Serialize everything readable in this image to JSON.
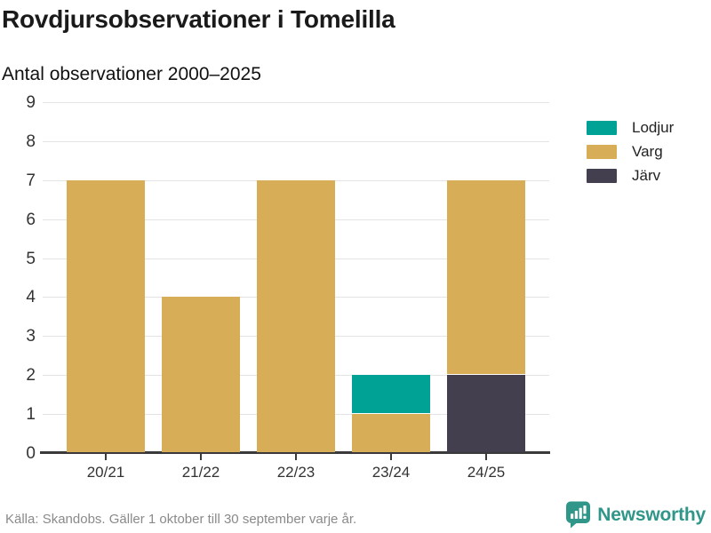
{
  "header": {
    "title": "Rovdjursobservationer i Tomelilla",
    "subtitle": "Antal observationer 2000–2025"
  },
  "chart_data": {
    "type": "bar",
    "stacked": true,
    "title": "Rovdjursobservationer i Tomelilla",
    "subtitle": "Antal observationer 2000–2025",
    "xlabel": "",
    "ylabel": "",
    "categories": [
      "20/21",
      "21/22",
      "22/23",
      "23/24",
      "24/25"
    ],
    "series": [
      {
        "name": "Lodjur",
        "color": "#00a296",
        "values": [
          0,
          0,
          0,
          1,
          0
        ]
      },
      {
        "name": "Varg",
        "color": "#d8ad58",
        "values": [
          7,
          4,
          7,
          1,
          5
        ]
      },
      {
        "name": "Järv",
        "color": "#443f4f",
        "values": [
          0,
          0,
          0,
          0,
          2
        ]
      }
    ],
    "stack_order_bottom_to_top": [
      "Järv",
      "Varg",
      "Lodjur"
    ],
    "totals": [
      7,
      4,
      7,
      2,
      7
    ],
    "ylim": [
      0,
      9
    ],
    "yticks": [
      0,
      1,
      2,
      3,
      4,
      5,
      6,
      7,
      8,
      9
    ],
    "grid": true,
    "legend_position": "right"
  },
  "footer": {
    "source": "Källa: Skandobs. Gäller 1 oktober till 30 september varje år."
  },
  "branding": {
    "name": "Newsworthy",
    "color": "#2f9689",
    "logo_icon": "bar-chart-speech-bubble"
  }
}
